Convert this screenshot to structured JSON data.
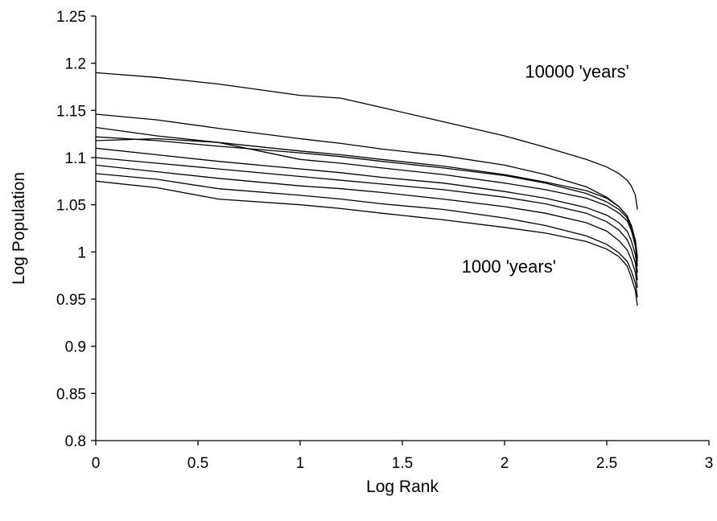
{
  "chart_data": {
    "type": "line",
    "title": "",
    "xlabel": "Log Rank",
    "ylabel": "Log Population",
    "xlim": [
      0,
      3
    ],
    "ylim": [
      0.8,
      1.25
    ],
    "x_ticks": [
      0,
      0.5,
      1,
      1.5,
      2,
      2.5,
      3
    ],
    "x_tick_labels": [
      "0",
      "0.5",
      "1",
      "1.5",
      "2",
      "2.5",
      "3"
    ],
    "y_ticks": [
      0.8,
      0.85,
      0.9,
      0.95,
      1,
      1.05,
      1.1,
      1.15,
      1.2,
      1.25
    ],
    "y_tick_labels": [
      "0.8",
      "0.85",
      "0.9",
      "0.95",
      "1",
      "1.05",
      "1.1",
      "1.15",
      "1.2",
      "1.25"
    ],
    "grid": false,
    "legend": "none",
    "annotations": [
      {
        "text": "10000 'years'",
        "x": 2.1,
        "y": 1.185
      },
      {
        "text": "1000 'years'",
        "x": 1.79,
        "y": 0.978
      }
    ],
    "series": [
      {
        "x": [
          0,
          0.3,
          0.6,
          1.0,
          1.2,
          1.4,
          1.7,
          2.0,
          2.2,
          2.4,
          2.5,
          2.56,
          2.6,
          2.62,
          2.64,
          2.65
        ],
        "values": [
          1.19,
          1.185,
          1.178,
          1.166,
          1.163,
          1.153,
          1.138,
          1.123,
          1.111,
          1.098,
          1.09,
          1.083,
          1.076,
          1.07,
          1.06,
          1.045
        ]
      },
      {
        "x": [
          0,
          0.3,
          0.6,
          1.0,
          1.2,
          1.4,
          1.7,
          2.0,
          2.2,
          2.4,
          2.5,
          2.56,
          2.6,
          2.62,
          2.64,
          2.65
        ],
        "values": [
          1.146,
          1.14,
          1.131,
          1.12,
          1.115,
          1.109,
          1.102,
          1.092,
          1.082,
          1.069,
          1.058,
          1.048,
          1.038,
          1.028,
          1.012,
          0.995
        ]
      },
      {
        "x": [
          0,
          0.3,
          0.6,
          1.0,
          1.2,
          1.4,
          1.7,
          2.0,
          2.2,
          2.4,
          2.5,
          2.56,
          2.6,
          2.62,
          2.64,
          2.65
        ],
        "values": [
          1.132,
          1.123,
          1.116,
          1.107,
          1.103,
          1.098,
          1.091,
          1.082,
          1.074,
          1.065,
          1.057,
          1.048,
          1.038,
          1.028,
          1.012,
          0.993
        ]
      },
      {
        "x": [
          0,
          0.3,
          0.6,
          1.0,
          1.2,
          1.4,
          1.7,
          2.0,
          2.2,
          2.4,
          2.5,
          2.56,
          2.6,
          2.62,
          2.64,
          2.65
        ],
        "values": [
          1.122,
          1.118,
          1.112,
          1.105,
          1.101,
          1.096,
          1.089,
          1.081,
          1.073,
          1.062,
          1.053,
          1.045,
          1.036,
          1.025,
          1.008,
          0.99
        ]
      },
      {
        "x": [
          0,
          0.3,
          0.6,
          1.0,
          1.2,
          1.4,
          1.7,
          2.0,
          2.2,
          2.4,
          2.5,
          2.56,
          2.6,
          2.62,
          2.64,
          2.65
        ],
        "values": [
          1.118,
          1.12,
          1.116,
          1.098,
          1.094,
          1.089,
          1.082,
          1.073,
          1.066,
          1.057,
          1.049,
          1.041,
          1.033,
          1.023,
          1.006,
          0.985
        ]
      },
      {
        "x": [
          0,
          0.3,
          0.6,
          1.0,
          1.2,
          1.4,
          1.7,
          2.0,
          2.2,
          2.4,
          2.5,
          2.56,
          2.6,
          2.62,
          2.64,
          2.65
        ],
        "values": [
          1.11,
          1.103,
          1.096,
          1.088,
          1.084,
          1.079,
          1.073,
          1.064,
          1.057,
          1.047,
          1.039,
          1.031,
          1.022,
          1.012,
          0.997,
          0.978
        ]
      },
      {
        "x": [
          0,
          0.3,
          0.6,
          1.0,
          1.2,
          1.4,
          1.7,
          2.0,
          2.2,
          2.4,
          2.5,
          2.56,
          2.6,
          2.62,
          2.64,
          2.65
        ],
        "values": [
          1.1,
          1.094,
          1.088,
          1.08,
          1.076,
          1.072,
          1.066,
          1.058,
          1.051,
          1.041,
          1.032,
          1.023,
          1.013,
          1.003,
          0.988,
          0.97
        ]
      },
      {
        "x": [
          0,
          0.3,
          0.6,
          1.0,
          1.2,
          1.4,
          1.7,
          2.0,
          2.2,
          2.4,
          2.5,
          2.56,
          2.6,
          2.62,
          2.64,
          2.65
        ],
        "values": [
          1.092,
          1.085,
          1.078,
          1.07,
          1.067,
          1.063,
          1.056,
          1.048,
          1.041,
          1.031,
          1.022,
          1.012,
          1.002,
          0.992,
          0.978,
          0.962
        ]
      },
      {
        "x": [
          0,
          0.3,
          0.6,
          1.0,
          1.2,
          1.4,
          1.7,
          2.0,
          2.2,
          2.4,
          2.5,
          2.56,
          2.6,
          2.62,
          2.64,
          2.65
        ],
        "values": [
          1.083,
          1.077,
          1.067,
          1.06,
          1.056,
          1.051,
          1.045,
          1.036,
          1.028,
          1.017,
          1.008,
          0.999,
          0.99,
          0.98,
          0.967,
          0.952
        ]
      },
      {
        "x": [
          0,
          0.3,
          0.6,
          1.0,
          1.2,
          1.4,
          1.7,
          2.0,
          2.2,
          2.4,
          2.5,
          2.56,
          2.6,
          2.62,
          2.64,
          2.65
        ],
        "values": [
          1.075,
          1.068,
          1.056,
          1.05,
          1.046,
          1.041,
          1.034,
          1.026,
          1.02,
          1.011,
          1.003,
          0.995,
          0.985,
          0.973,
          0.959,
          0.943
        ]
      }
    ]
  }
}
